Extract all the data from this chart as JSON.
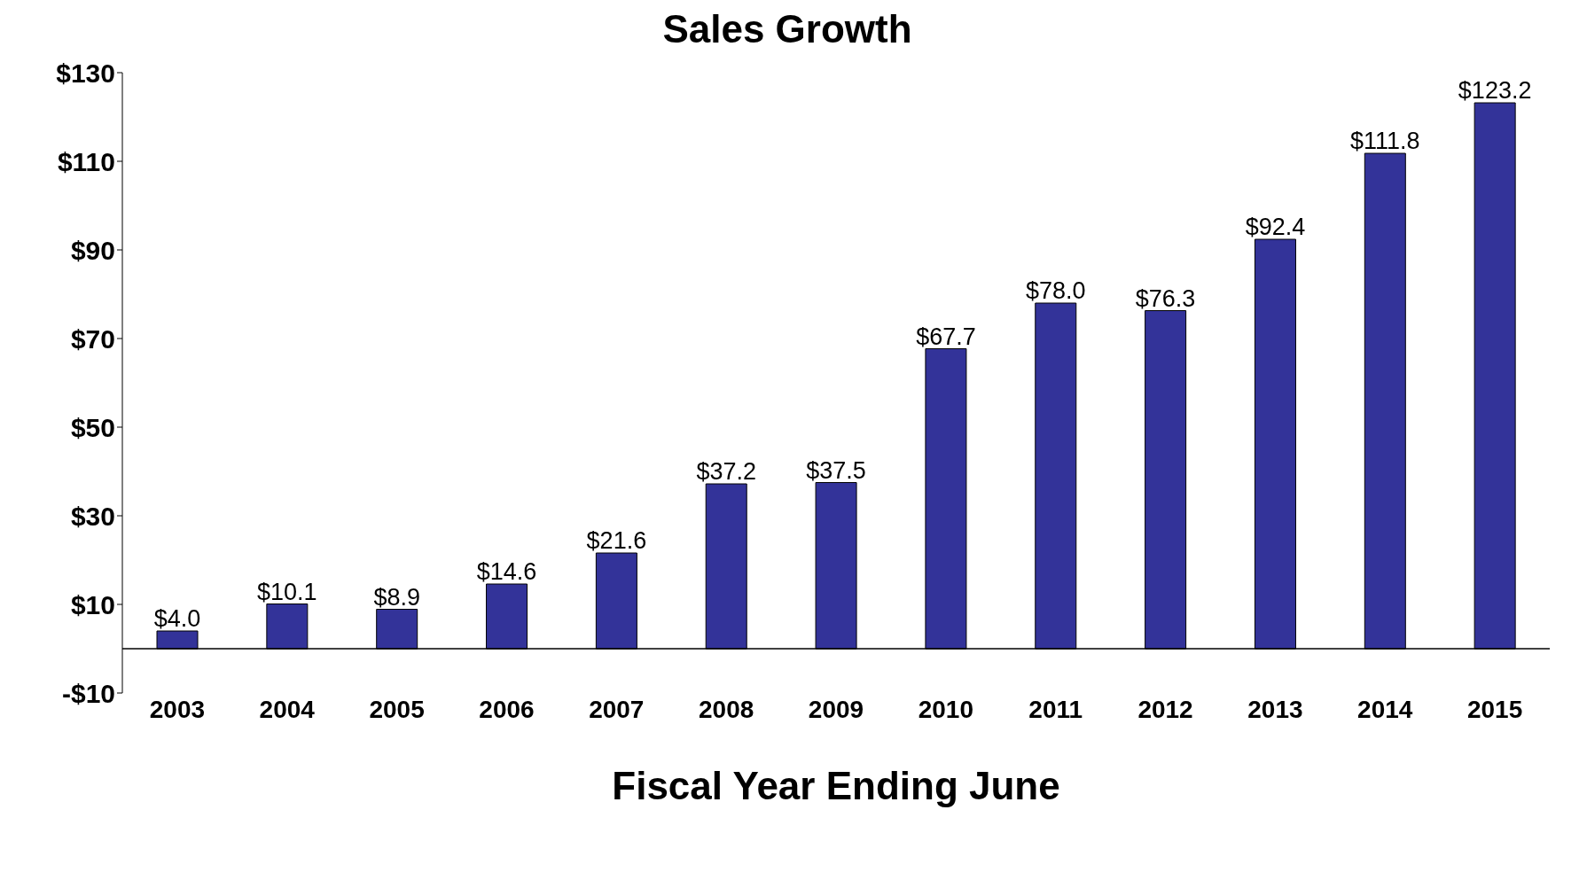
{
  "chart_data": {
    "type": "bar",
    "title": "Sales Growth",
    "xlabel": "Fiscal Year Ending June",
    "categories": [
      "2003",
      "2004",
      "2005",
      "2006",
      "2007",
      "2008",
      "2009",
      "2010",
      "2011",
      "2012",
      "2013",
      "2014",
      "2015"
    ],
    "values": [
      4.0,
      10.1,
      8.9,
      14.6,
      21.6,
      37.2,
      37.5,
      67.7,
      78.0,
      76.3,
      92.4,
      111.8,
      123.2
    ],
    "value_labels": [
      "$4.0",
      "$10.1",
      "$8.9",
      "$14.6",
      "$21.6",
      "$37.2",
      "$37.5",
      "$67.7",
      "$78.0",
      "$76.3",
      "$92.4",
      "$111.8",
      "$123.2"
    ],
    "color": "#333399",
    "ylim": [
      -10,
      130
    ],
    "yticks": [
      {
        "value": -10,
        "label": "-$10"
      },
      {
        "value": 10,
        "label": "$10"
      },
      {
        "value": 30,
        "label": "$30"
      },
      {
        "value": 50,
        "label": "$50"
      },
      {
        "value": 70,
        "label": "$70"
      },
      {
        "value": 90,
        "label": "$90"
      },
      {
        "value": 110,
        "label": "$110"
      },
      {
        "value": 130,
        "label": "$130"
      }
    ],
    "grid": false,
    "legend": false
  }
}
